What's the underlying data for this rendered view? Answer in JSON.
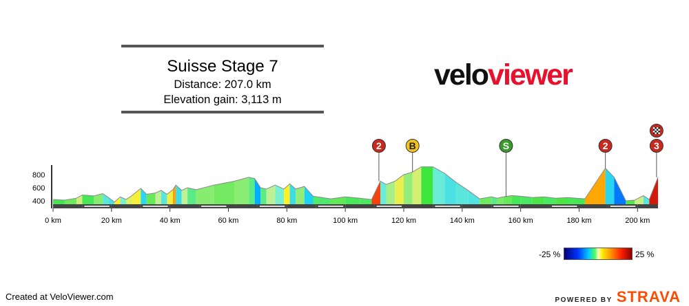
{
  "header": {
    "title": "Suisse Stage 7",
    "distance": "Distance: 207.0 km",
    "elevation_gain": "Elevation gain: 3,113 m"
  },
  "brand": {
    "logo_part1": "velo",
    "logo_part2": "viewer",
    "logo_color": "#e8112d"
  },
  "footer": {
    "created": "Created at VeloViewer.com",
    "powered_by": "POWERED BY",
    "strava": "STRAVA",
    "strava_color": "#fc4c02"
  },
  "legend": {
    "min_label": "-25 %",
    "max_label": "25 %"
  },
  "chart_data": {
    "type": "area",
    "xlabel": "",
    "ylabel": "",
    "x_unit": "km",
    "xlim": [
      0,
      207
    ],
    "ylim": [
      300,
      1000
    ],
    "x_ticks": [
      0,
      20,
      40,
      60,
      80,
      100,
      120,
      140,
      160,
      180,
      200
    ],
    "x_tick_labels": [
      "0 km",
      "20 km",
      "40 km",
      "60 km",
      "80 km",
      "100 km",
      "120 km",
      "140 km",
      "160 km",
      "180 km",
      "200 km"
    ],
    "y_ticks": [
      400,
      600,
      800
    ],
    "y_tick_labels": [
      "400",
      "600",
      "800"
    ],
    "profile": [
      {
        "km": 0,
        "elev": 420
      },
      {
        "km": 4,
        "elev": 410
      },
      {
        "km": 8,
        "elev": 440
      },
      {
        "km": 10,
        "elev": 490
      },
      {
        "km": 14,
        "elev": 475
      },
      {
        "km": 17,
        "elev": 510
      },
      {
        "km": 19,
        "elev": 450
      },
      {
        "km": 21,
        "elev": 380
      },
      {
        "km": 23,
        "elev": 460
      },
      {
        "km": 25,
        "elev": 420
      },
      {
        "km": 27,
        "elev": 480
      },
      {
        "km": 30,
        "elev": 590
      },
      {
        "km": 32,
        "elev": 500
      },
      {
        "km": 35,
        "elev": 520
      },
      {
        "km": 37,
        "elev": 560
      },
      {
        "km": 39,
        "elev": 500
      },
      {
        "km": 41,
        "elev": 570
      },
      {
        "km": 42,
        "elev": 640
      },
      {
        "km": 44,
        "elev": 560
      },
      {
        "km": 46,
        "elev": 600
      },
      {
        "km": 49,
        "elev": 570
      },
      {
        "km": 55,
        "elev": 640
      },
      {
        "km": 62,
        "elev": 700
      },
      {
        "km": 67,
        "elev": 760
      },
      {
        "km": 69,
        "elev": 740
      },
      {
        "km": 71,
        "elev": 600
      },
      {
        "km": 73,
        "elev": 580
      },
      {
        "km": 76,
        "elev": 640
      },
      {
        "km": 79,
        "elev": 580
      },
      {
        "km": 81,
        "elev": 660
      },
      {
        "km": 83,
        "elev": 580
      },
      {
        "km": 86,
        "elev": 620
      },
      {
        "km": 89,
        "elev": 470
      },
      {
        "km": 95,
        "elev": 430
      },
      {
        "km": 100,
        "elev": 460
      },
      {
        "km": 105,
        "elev": 440
      },
      {
        "km": 109,
        "elev": 420
      },
      {
        "km": 112,
        "elev": 700
      },
      {
        "km": 114,
        "elev": 650
      },
      {
        "km": 117,
        "elev": 700
      },
      {
        "km": 120,
        "elev": 800
      },
      {
        "km": 123,
        "elev": 840
      },
      {
        "km": 126,
        "elev": 920
      },
      {
        "km": 130,
        "elev": 920
      },
      {
        "km": 134,
        "elev": 820
      },
      {
        "km": 138,
        "elev": 680
      },
      {
        "km": 142,
        "elev": 560
      },
      {
        "km": 146,
        "elev": 430
      },
      {
        "km": 150,
        "elev": 460
      },
      {
        "km": 152,
        "elev": 440
      },
      {
        "km": 154,
        "elev": 460
      },
      {
        "km": 157,
        "elev": 480
      },
      {
        "km": 160,
        "elev": 470
      },
      {
        "km": 164,
        "elev": 450
      },
      {
        "km": 168,
        "elev": 460
      },
      {
        "km": 172,
        "elev": 440
      },
      {
        "km": 176,
        "elev": 450
      },
      {
        "km": 182,
        "elev": 430
      },
      {
        "km": 189,
        "elev": 900
      },
      {
        "km": 192,
        "elev": 760
      },
      {
        "km": 196,
        "elev": 400
      },
      {
        "km": 199,
        "elev": 410
      },
      {
        "km": 202,
        "elev": 480
      },
      {
        "km": 204,
        "elev": 420
      },
      {
        "km": 207,
        "elev": 760
      }
    ],
    "markers": [
      {
        "km": 111.5,
        "label": "2",
        "type": "climb-cat-2",
        "color": "#c8281e"
      },
      {
        "km": 123,
        "label": "B",
        "type": "bonus-sprint",
        "color": "#f2c31a"
      },
      {
        "km": 155,
        "label": "S",
        "type": "sprint",
        "color": "#3a9a2c"
      },
      {
        "km": 189,
        "label": "2",
        "type": "climb-cat-2",
        "color": "#c8281e"
      },
      {
        "km": 206.5,
        "label": "3",
        "type": "climb-cat-3",
        "color": "#c8281e"
      },
      {
        "km": 206.5,
        "label": "",
        "type": "finish-flag",
        "color": "#c8281e"
      }
    ]
  }
}
